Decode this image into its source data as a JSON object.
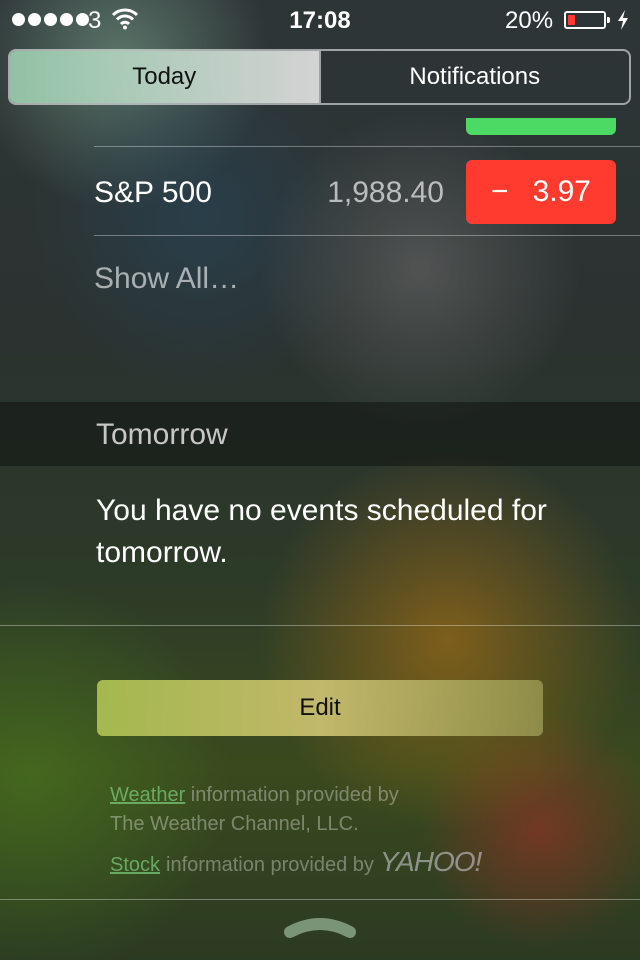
{
  "status_bar": {
    "carrier": "3",
    "time": "17:08",
    "battery_percent": "20%",
    "battery_level": 0.2,
    "battery_color": "#ff3b30"
  },
  "tabs": [
    {
      "label": "Today",
      "active": true
    },
    {
      "label": "Notifications",
      "active": false
    }
  ],
  "stocks": {
    "rows": [
      {
        "name": "S&P 500",
        "price": "1,988.40",
        "change_sign": "−",
        "change": "3.97",
        "change_color": "#ff3b30"
      }
    ],
    "show_all": "Show All…",
    "up_color": "#4cd964"
  },
  "tomorrow": {
    "title": "Tomorrow",
    "message": "You have no events scheduled for tomorrow."
  },
  "edit_label": "Edit",
  "footer": {
    "weather_link": "Weather",
    "weather_text": "information provided by",
    "weather_provider": "The Weather Channel, LLC.",
    "stock_link": "Stock",
    "stock_text": "information provided by",
    "stock_provider_logo": "YAHOO!"
  },
  "icons": {
    "wifi": "wifi-icon",
    "charging": "charging-bolt-icon",
    "grabber": "grabber-chevron-icon"
  }
}
